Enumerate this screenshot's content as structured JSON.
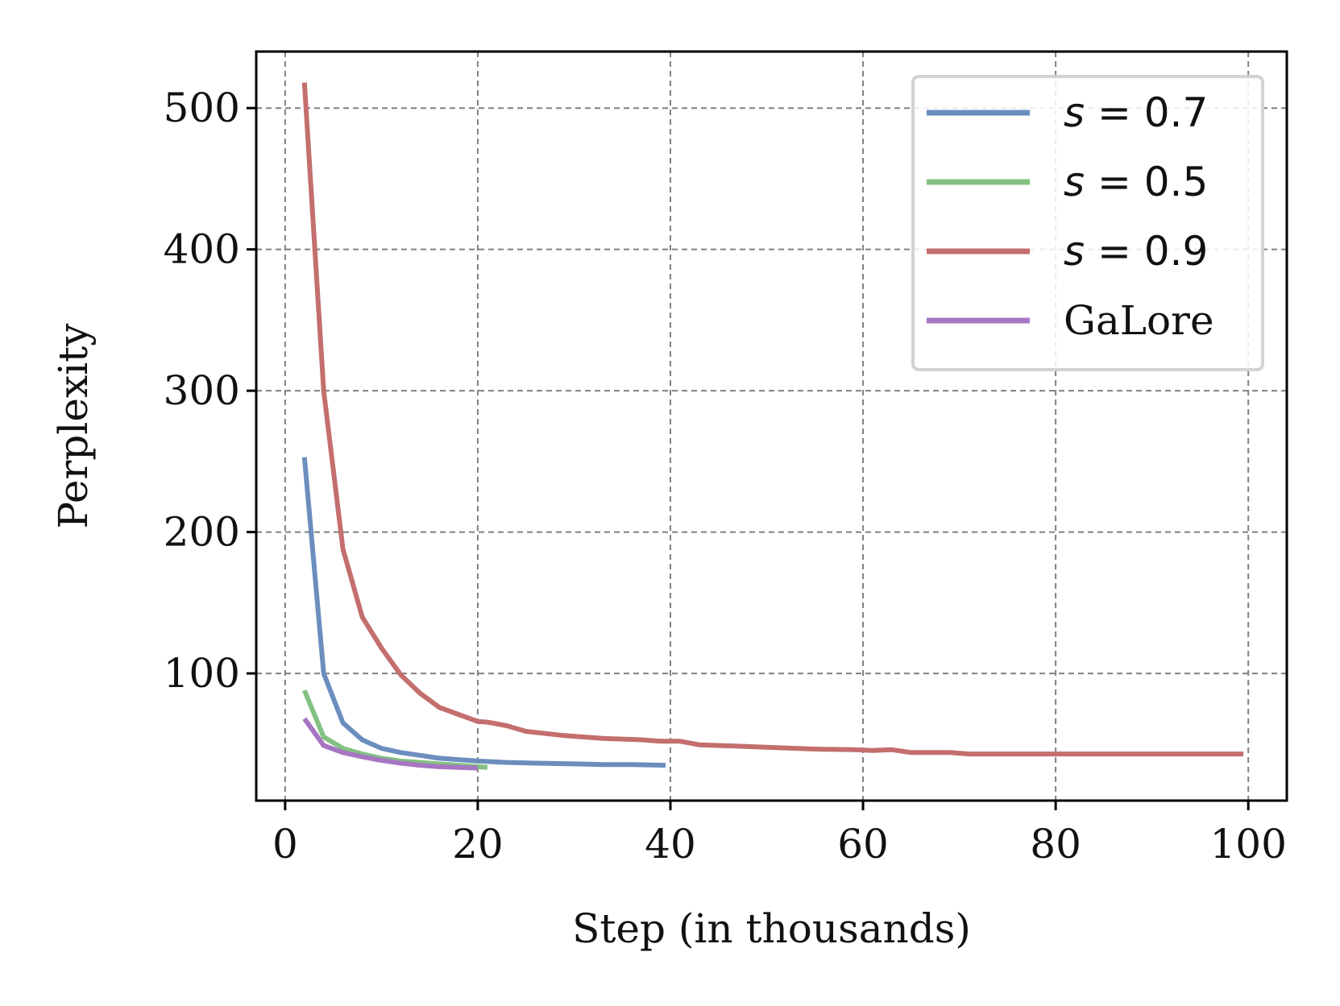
{
  "chart_data": {
    "type": "line",
    "xlabel": "Step (in thousands)",
    "ylabel": "Perplexity",
    "xlim": [
      -3,
      104
    ],
    "ylim": [
      10,
      540
    ],
    "xticks": [
      0,
      20,
      40,
      60,
      80,
      100
    ],
    "yticks": [
      100,
      200,
      300,
      400,
      500
    ],
    "grid": true,
    "legend_position": "top-right",
    "series": [
      {
        "name": "s = 0.7",
        "color": "#6c8ebf",
        "x": [
          2,
          4,
          6,
          8,
          10,
          12,
          14,
          16,
          18,
          20,
          23,
          26,
          30,
          33,
          36,
          39.5
        ],
        "y": [
          253,
          100,
          65,
          53,
          47,
          44,
          42,
          40,
          39,
          38,
          37,
          36.5,
          36,
          35.5,
          35.5,
          35
        ]
      },
      {
        "name": "s = 0.5",
        "color": "#82c182",
        "x": [
          2,
          4,
          6,
          8,
          10,
          12,
          14,
          16,
          18,
          20,
          21
        ],
        "y": [
          88,
          55,
          47,
          43,
          40,
          38,
          37,
          36,
          35,
          34,
          33.5
        ]
      },
      {
        "name": "s = 0.9",
        "color": "#c46e6e",
        "x": [
          2,
          4,
          6,
          8,
          10,
          12,
          14,
          16,
          18,
          20,
          21,
          23,
          25,
          29,
          33,
          37,
          39,
          41,
          43,
          47,
          51,
          55,
          59,
          61,
          63,
          65,
          69,
          71,
          75,
          79,
          85,
          90,
          95,
          99.5
        ],
        "y": [
          518,
          300,
          188,
          140,
          118,
          99,
          86,
          76,
          71,
          66,
          65.5,
          63,
          59,
          56,
          54,
          53,
          52,
          52,
          49.5,
          48.5,
          47.5,
          46.5,
          46,
          45.5,
          46,
          44,
          44,
          43,
          43,
          43,
          43,
          43,
          43,
          43
        ]
      },
      {
        "name": "GaLore",
        "color": "#a776c2",
        "x": [
          2,
          4,
          6,
          8,
          10,
          12,
          14,
          16,
          18,
          20
        ],
        "y": [
          68,
          49,
          44,
          41,
          38.5,
          36.5,
          35,
          34,
          33.5,
          33
        ]
      }
    ]
  }
}
